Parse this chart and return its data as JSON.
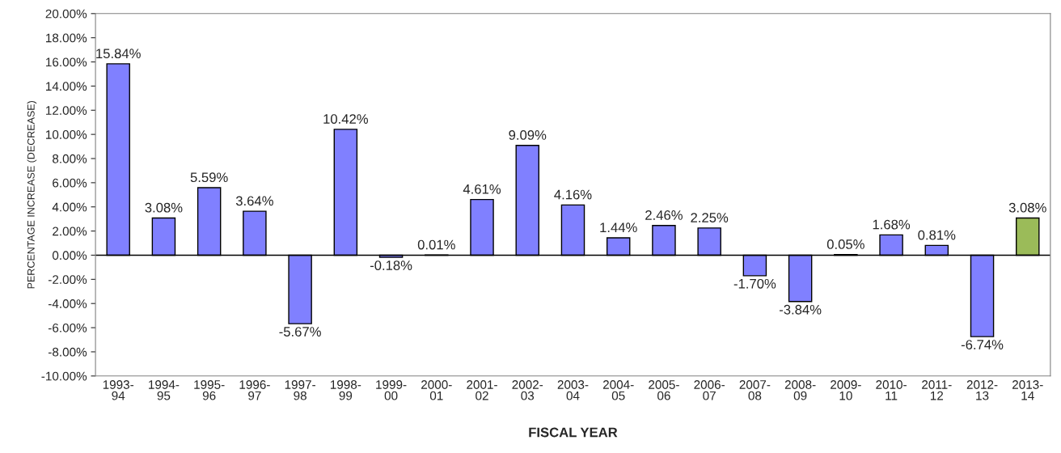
{
  "chart_data": {
    "type": "bar",
    "xlabel": "FISCAL YEAR",
    "ylabel": "PERCENTAGE INCREASE (DECREASE)",
    "categories": [
      "1993-\n94",
      "1994-\n95",
      "1995-\n96",
      "1996-\n97",
      "1997-\n98",
      "1998-\n99",
      "1999-\n00",
      "2000-\n01",
      "2001-\n02",
      "2002-\n03",
      "2003-\n04",
      "2004-\n05",
      "2005-\n06",
      "2006-\n07",
      "2007-\n08",
      "2008-\n09",
      "2009-\n10",
      "2010-\n11",
      "2011-\n12",
      "2012-\n13",
      "2013-\n14"
    ],
    "values": [
      15.84,
      3.08,
      5.59,
      3.64,
      -5.67,
      10.42,
      -0.18,
      0.01,
      4.61,
      9.09,
      4.16,
      1.44,
      2.46,
      2.25,
      -1.7,
      -3.84,
      0.05,
      1.68,
      0.81,
      -6.74,
      3.08
    ],
    "value_labels": [
      "15.84%",
      "3.08%",
      "5.59%",
      "3.64%",
      "-5.67%",
      "10.42%",
      "-0.18%",
      "0.01%",
      "4.61%",
      "9.09%",
      "4.16%",
      "1.44%",
      "2.46%",
      "2.25%",
      "-1.70%",
      "-3.84%",
      "0.05%",
      "1.68%",
      "0.81%",
      "-6.74%",
      "3.08%"
    ],
    "colors": [
      "#8080ff",
      "#8080ff",
      "#8080ff",
      "#8080ff",
      "#8080ff",
      "#8080ff",
      "#8080ff",
      "#8080ff",
      "#8080ff",
      "#8080ff",
      "#8080ff",
      "#8080ff",
      "#8080ff",
      "#8080ff",
      "#8080ff",
      "#8080ff",
      "#8080ff",
      "#8080ff",
      "#8080ff",
      "#8080ff",
      "#9bbb59"
    ],
    "ylim": [
      -10,
      20
    ],
    "yticks": [
      {
        "value": -10,
        "label": "-10.00%"
      },
      {
        "value": -8,
        "label": "-8.00%"
      },
      {
        "value": -6,
        "label": "-6.00%"
      },
      {
        "value": -4,
        "label": "-4.00%"
      },
      {
        "value": -2,
        "label": "-2.00%"
      },
      {
        "value": 0,
        "label": "0.00%"
      },
      {
        "value": 2,
        "label": "2.00%"
      },
      {
        "value": 4,
        "label": "4.00%"
      },
      {
        "value": 6,
        "label": "6.00%"
      },
      {
        "value": 8,
        "label": "8.00%"
      },
      {
        "value": 10,
        "label": "10.00%"
      },
      {
        "value": 12,
        "label": "12.00%"
      },
      {
        "value": 14,
        "label": "14.00%"
      },
      {
        "value": 16,
        "label": "16.00%"
      },
      {
        "value": 18,
        "label": "18.00%"
      },
      {
        "value": 20,
        "label": "20.00%"
      }
    ],
    "ref_lines": [
      {
        "axis": "y",
        "value": 0,
        "color": "#000000"
      }
    ],
    "grid": false,
    "legend": false
  }
}
